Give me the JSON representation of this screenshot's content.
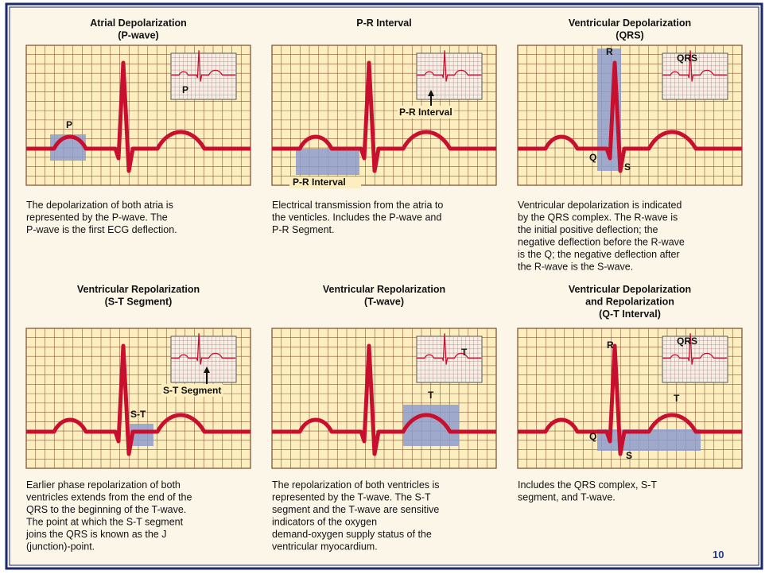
{
  "panels": [
    {
      "title": [
        "Atrial Depolarization",
        "(P-wave)"
      ],
      "labels": [
        "P"
      ],
      "inset_labels": [
        "P"
      ],
      "description": [
        "The depolarization of both atria is",
        "represented by the P-wave. The",
        "P-wave is the first ECG deflection."
      ]
    },
    {
      "title": [
        "P-R Interval"
      ],
      "labels": [
        "P-R Interval"
      ],
      "inset_labels": [
        "P-R Interval"
      ],
      "description": [
        "Electrical transmission from the atria to",
        "the venticles. Includes the P-wave and",
        "P-R Segment."
      ]
    },
    {
      "title": [
        "Ventricular Depolarization",
        "(QRS)"
      ],
      "labels": [
        "R",
        "Q",
        "S"
      ],
      "inset_labels": [
        "QRS"
      ],
      "description": [
        "Ventricular depolarization is indicated",
        "by the QRS complex. The R-wave is",
        "the initial positive deflection; the",
        "negative deflection before the R-wave",
        "is the Q; the negative deflection after",
        "the R-wave is the S-wave."
      ]
    },
    {
      "title": [
        "Ventricular Repolarization",
        "(S-T Segment)"
      ],
      "labels": [
        "S-T"
      ],
      "inset_labels": [
        "S-T Segment"
      ],
      "description": [
        "Earlier phase repolarization of both",
        "ventricles extends from the end of the",
        "QRS to the beginning of the T-wave.",
        "The point at which the S-T segment",
        "joins the QRS is known as the J",
        "(junction)-point."
      ]
    },
    {
      "title": [
        "Ventricular Repolarization",
        "(T-wave)"
      ],
      "labels": [
        "T"
      ],
      "inset_labels": [
        "T"
      ],
      "description": [
        "The repolarization of both ventricles is",
        "represented by the T-wave. The S-T",
        "segment and the T-wave are sensitive",
        "indicators of the oxygen",
        "demand-oxygen supply status of the",
        "ventricular myocardium."
      ]
    },
    {
      "title": [
        "Ventricular Depolarization",
        "and Repolarization",
        "(Q-T Interval)"
      ],
      "labels": [
        "R",
        "Q",
        "S",
        "T"
      ],
      "inset_labels": [
        "QRS"
      ],
      "description": [
        "Includes the QRS complex, S-T",
        "segment, and T-wave."
      ]
    }
  ],
  "page_number": "10"
}
